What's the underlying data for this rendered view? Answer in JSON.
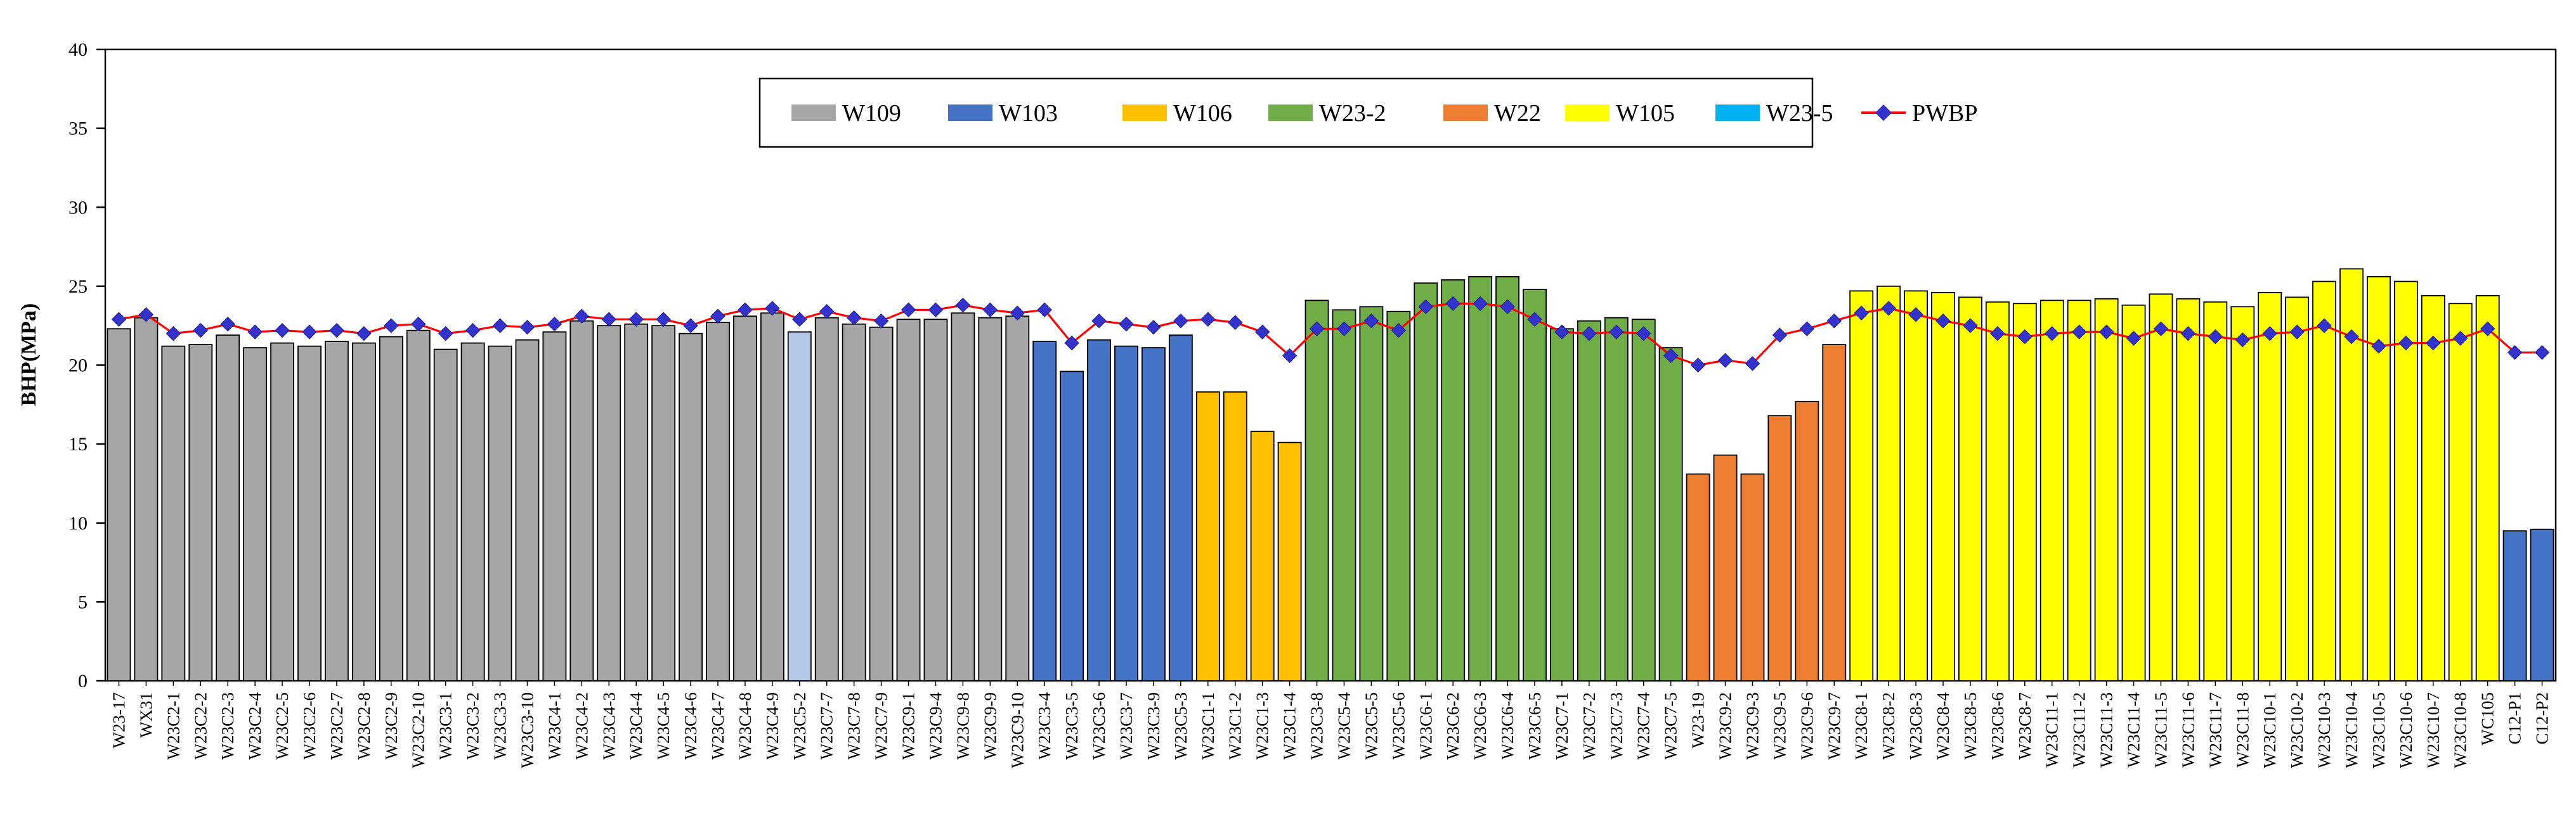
{
  "chart_data": {
    "type": "bar",
    "title": "",
    "xlabel": "",
    "ylabel": "BHP(MPa)",
    "ylim": [
      0,
      40
    ],
    "yticks": [
      0,
      5,
      10,
      15,
      20,
      25,
      30,
      35,
      40
    ],
    "grid": false,
    "legend_position": "top-center",
    "groups": [
      {
        "name": "W109",
        "color": "#a6a6a6",
        "wells": [
          {
            "label": "W23-17",
            "value": 22.3
          },
          {
            "label": "WX31",
            "value": 23.0
          },
          {
            "label": "W23C2-1",
            "value": 21.2
          },
          {
            "label": "W23C2-2",
            "value": 21.3
          },
          {
            "label": "W23C2-3",
            "value": 21.9
          },
          {
            "label": "W23C2-4",
            "value": 21.1
          },
          {
            "label": "W23C2-5",
            "value": 21.4
          },
          {
            "label": "W23C2-6",
            "value": 21.2
          },
          {
            "label": "W23C2-7",
            "value": 21.5
          },
          {
            "label": "W23C2-8",
            "value": 21.4
          },
          {
            "label": "W23C2-9",
            "value": 21.8
          },
          {
            "label": "W23C2-10",
            "value": 22.2
          },
          {
            "label": "W23C3-1",
            "value": 21.0
          },
          {
            "label": "W23C3-2",
            "value": 21.4
          },
          {
            "label": "W23C3-3",
            "value": 21.2
          },
          {
            "label": "W23C3-10",
            "value": 21.6
          },
          {
            "label": "W23C4-1",
            "value": 22.1
          },
          {
            "label": "W23C4-2",
            "value": 22.8
          },
          {
            "label": "W23C4-3",
            "value": 22.5
          },
          {
            "label": "W23C4-4",
            "value": 22.6
          },
          {
            "label": "W23C4-5",
            "value": 22.5
          },
          {
            "label": "W23C4-6",
            "value": 22.0
          },
          {
            "label": "W23C4-7",
            "value": 22.7
          },
          {
            "label": "W23C4-8",
            "value": 23.1
          },
          {
            "label": "W23C4-9",
            "value": 23.3
          },
          {
            "label": "W23C5-2",
            "value": 22.1
          },
          {
            "label": "W23C7-7",
            "value": 23.0
          },
          {
            "label": "W23C7-8",
            "value": 22.6
          },
          {
            "label": "W23C7-9",
            "value": 22.4
          },
          {
            "label": "W23C9-1",
            "value": 22.9
          },
          {
            "label": "W23C9-4",
            "value": 22.9
          },
          {
            "label": "W23C9-8",
            "value": 23.3
          },
          {
            "label": "W23C9-9",
            "value": 23.0
          },
          {
            "label": "W23C9-10",
            "value": 23.1
          }
        ]
      },
      {
        "name": "W103",
        "color": "#4472c4",
        "wells": [
          {
            "label": "W23C3-4",
            "value": 21.5
          },
          {
            "label": "W23C3-5",
            "value": 19.6
          },
          {
            "label": "W23C3-6",
            "value": 21.6
          },
          {
            "label": "W23C3-7",
            "value": 21.2
          },
          {
            "label": "W23C3-9",
            "value": 21.1
          },
          {
            "label": "W23C5-3",
            "value": 21.9
          }
        ]
      },
      {
        "name": "W106",
        "color": "#ffc000",
        "wells": [
          {
            "label": "W23C1-1",
            "value": 18.3
          },
          {
            "label": "W23C1-2",
            "value": 18.3
          },
          {
            "label": "W23C1-3",
            "value": 15.8
          },
          {
            "label": "W23C1-4",
            "value": 15.1
          }
        ]
      },
      {
        "name": "W23-2",
        "color": "#70ad47",
        "wells": [
          {
            "label": "W23C3-8",
            "value": 24.1
          },
          {
            "label": "W23C5-4",
            "value": 23.5
          },
          {
            "label": "W23C5-5",
            "value": 23.7
          },
          {
            "label": "W23C5-6",
            "value": 23.4
          },
          {
            "label": "W23C6-1",
            "value": 25.2
          },
          {
            "label": "W23C6-2",
            "value": 25.4
          },
          {
            "label": "W23C6-3",
            "value": 25.6
          },
          {
            "label": "W23C6-4",
            "value": 25.6
          },
          {
            "label": "W23C6-5",
            "value": 24.8
          },
          {
            "label": "W23C7-1",
            "value": 22.3
          },
          {
            "label": "W23C7-2",
            "value": 22.8
          },
          {
            "label": "W23C7-3",
            "value": 23.0
          },
          {
            "label": "W23C7-4",
            "value": 22.9
          },
          {
            "label": "W23C7-5",
            "value": 21.1
          }
        ]
      },
      {
        "name": "W22",
        "color": "#ed7d31",
        "wells": [
          {
            "label": "W23-19",
            "value": 13.1
          },
          {
            "label": "W23C9-2",
            "value": 14.3
          },
          {
            "label": "W23C9-3",
            "value": 13.1
          },
          {
            "label": "W23C9-5",
            "value": 16.8
          },
          {
            "label": "W23C9-6",
            "value": 17.7
          },
          {
            "label": "W23C9-7",
            "value": 21.3
          }
        ]
      },
      {
        "name": "W105",
        "color": "#ffff00",
        "wells": [
          {
            "label": "W23C8-1",
            "value": 24.7
          },
          {
            "label": "W23C8-2",
            "value": 25.0
          },
          {
            "label": "W23C8-3",
            "value": 24.7
          },
          {
            "label": "W23C8-4",
            "value": 24.6
          },
          {
            "label": "W23C8-5",
            "value": 24.3
          },
          {
            "label": "W23C8-6",
            "value": 24.0
          },
          {
            "label": "W23C8-7",
            "value": 23.9
          },
          {
            "label": "W23C11-1",
            "value": 24.1
          },
          {
            "label": "W23C11-2",
            "value": 24.1
          },
          {
            "label": "W23C11-3",
            "value": 24.2
          },
          {
            "label": "W23C11-4",
            "value": 23.8
          },
          {
            "label": "W23C11-5",
            "value": 24.5
          },
          {
            "label": "W23C11-6",
            "value": 24.2
          },
          {
            "label": "W23C11-7",
            "value": 24.0
          },
          {
            "label": "W23C11-8",
            "value": 23.7
          },
          {
            "label": "W23C10-1",
            "value": 24.6
          },
          {
            "label": "W23C10-2",
            "value": 24.3
          },
          {
            "label": "W23C10-3",
            "value": 25.3
          },
          {
            "label": "W23C10-4",
            "value": 26.1
          },
          {
            "label": "W23C10-5",
            "value": 25.6
          },
          {
            "label": "W23C10-6",
            "value": 25.3
          },
          {
            "label": "W23C10-7",
            "value": 24.4
          },
          {
            "label": "W23C10-8",
            "value": 23.9
          },
          {
            "label": "WC105",
            "value": 24.4
          }
        ]
      },
      {
        "name": "W23-5",
        "color": "#00b0f0",
        "wells": [
          {
            "label": "C12-P1",
            "value": 9.5
          },
          {
            "label": "C12-P2",
            "value": 9.6
          }
        ]
      }
    ],
    "bar_color_overrides": {
      "C12-P1": "#4472c4",
      "C12-P2": "#4472c4",
      "W23C5-2": "#b4c7e7"
    },
    "line_series": {
      "name": "PWBP",
      "line_color": "#ff0000",
      "marker_color": "#3333cc",
      "values": [
        22.9,
        23.2,
        22.0,
        22.2,
        22.6,
        22.1,
        22.2,
        22.1,
        22.2,
        22.0,
        22.5,
        22.6,
        22.0,
        22.2,
        22.5,
        22.4,
        22.6,
        23.1,
        22.9,
        22.9,
        22.9,
        22.5,
        23.1,
        23.5,
        23.6,
        22.9,
        23.4,
        23.0,
        22.8,
        23.5,
        23.5,
        23.8,
        23.5,
        23.3,
        23.5,
        21.4,
        22.8,
        22.6,
        22.4,
        22.8,
        22.9,
        22.7,
        22.1,
        20.6,
        22.3,
        22.3,
        22.8,
        22.2,
        23.7,
        23.9,
        23.9,
        23.7,
        22.9,
        22.1,
        22.0,
        22.1,
        22.0,
        20.6,
        20.0,
        20.3,
        20.1,
        21.9,
        22.3,
        22.8,
        23.3,
        23.6,
        23.2,
        22.8,
        22.5,
        22.0,
        21.8,
        22.0,
        22.1,
        22.1,
        21.7,
        22.3,
        22.0,
        21.8,
        21.6,
        22.0,
        22.1,
        22.5,
        21.8,
        21.2,
        21.4,
        21.4,
        21.7,
        22.3,
        20.8,
        20.8
      ]
    }
  }
}
